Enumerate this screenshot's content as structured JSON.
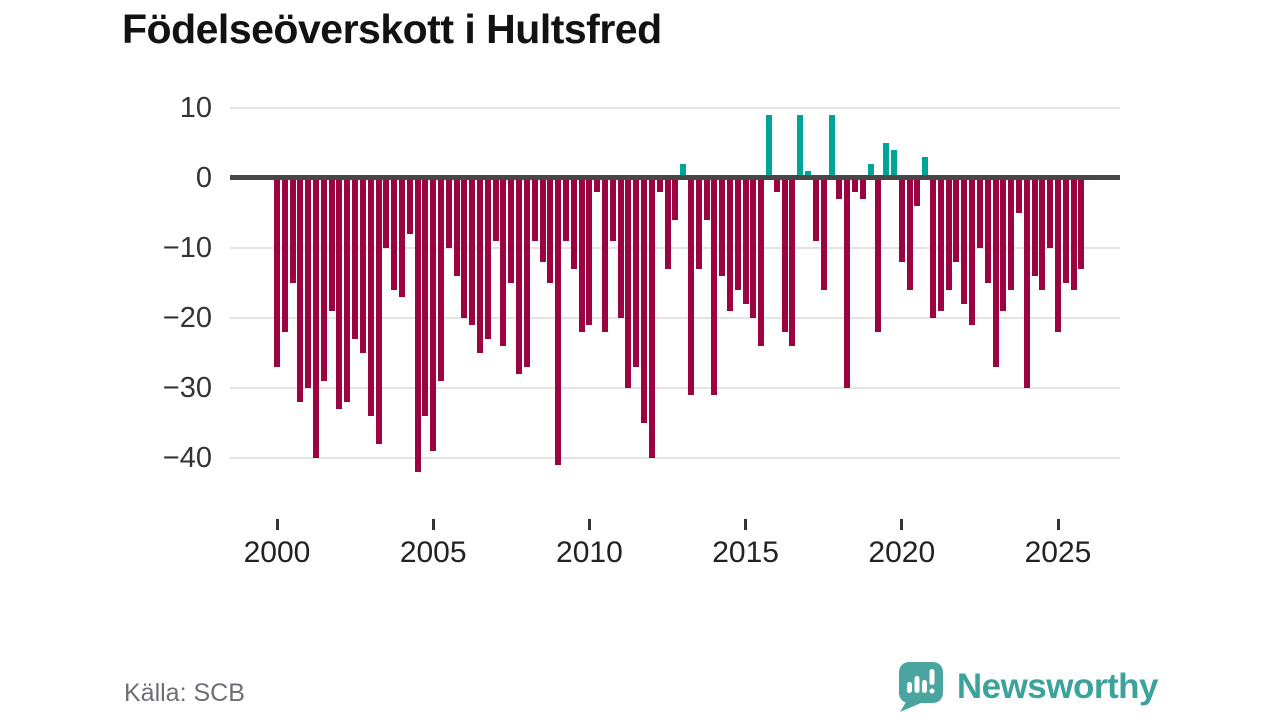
{
  "title": "Födelseöverskott i Hultsfred",
  "source_label": "Källa: SCB",
  "brand": {
    "name": "Newsworthy",
    "color": "#3ba39c",
    "badge_color": "#4aa5a0"
  },
  "colors": {
    "negative_bar": "#9b0440",
    "positive_bar": "#00a59a",
    "zero_line": "#474747",
    "gridline": "#e4e4e4",
    "axis_text": "#333333"
  },
  "chart_data": {
    "type": "bar",
    "title": "Födelseöverskott i Hultsfred",
    "frequency": "quarterly",
    "x_start": "2000 Q1",
    "x_end": "2025 Q4",
    "xlabel": "",
    "ylabel": "",
    "ylim": [
      -44,
      12
    ],
    "grid": "horizontal",
    "legend": "none",
    "ytick_values": [
      10,
      0,
      -10,
      -20,
      -30,
      -40
    ],
    "ytick_labels": [
      "10",
      "0",
      "−10",
      "−20",
      "−30",
      "−40"
    ],
    "xtick_years": [
      2000,
      2005,
      2010,
      2015,
      2020,
      2025
    ],
    "xtick_labels": [
      "2000",
      "2005",
      "2010",
      "2015",
      "2020",
      "2025"
    ],
    "values": [
      -27,
      -22,
      -15,
      -32,
      -30,
      -40,
      -29,
      -19,
      -33,
      -32,
      -23,
      -25,
      -34,
      -38,
      -10,
      -16,
      -17,
      -8,
      -42,
      -34,
      -39,
      -29,
      -10,
      -14,
      -20,
      -21,
      -25,
      -23,
      -9,
      -24,
      -15,
      -28,
      -27,
      -9,
      -12,
      -15,
      -41,
      -9,
      -13,
      -22,
      -21,
      -2,
      -22,
      -9,
      -20,
      -30,
      -27,
      -35,
      -40,
      -2,
      -13,
      -6,
      2,
      -31,
      -13,
      -6,
      -31,
      -14,
      -19,
      -16,
      -18,
      -20,
      -24,
      9,
      -2,
      -22,
      -24,
      9,
      1,
      -9,
      -16,
      9,
      -3,
      -30,
      -2,
      -3,
      2,
      -22,
      5,
      4,
      -12,
      -16,
      -4,
      3,
      -20,
      -19,
      -16,
      -12,
      -18,
      -21,
      -10,
      -15,
      -27,
      -19,
      -16,
      -5,
      -30,
      -14,
      -16,
      -10,
      -22,
      -15,
      -16,
      -13
    ]
  }
}
